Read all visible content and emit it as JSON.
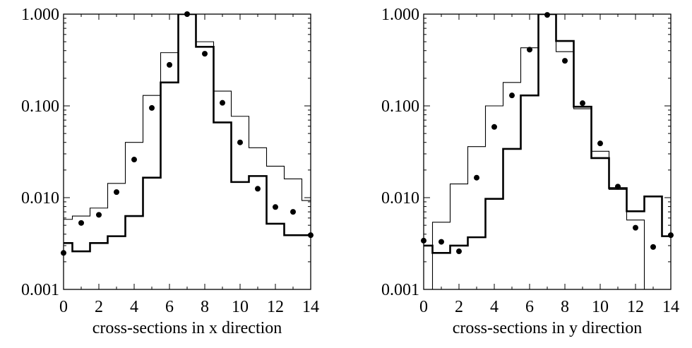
{
  "chart_data": [
    {
      "type": "line",
      "xlabel": "cross-sections in x direction",
      "ylabel": "",
      "xlim": [
        0,
        14
      ],
      "ylim": [
        0.001,
        1.0
      ],
      "yscale": "log",
      "x_ticks": [
        0,
        2,
        4,
        6,
        8,
        10,
        12,
        14
      ],
      "x_tick_labels": [
        "0",
        "2",
        "4",
        "6",
        "8",
        "10",
        "12",
        "14"
      ],
      "y_ticks": [
        0.001,
        0.01,
        0.1,
        1.0
      ],
      "y_tick_labels": [
        "0.001",
        "0.010",
        "0.100",
        "1.000"
      ],
      "grid": false,
      "series": [
        {
          "kind": "points",
          "x": [
            0,
            1,
            2,
            3,
            4,
            5,
            6,
            7,
            8,
            9,
            10,
            11,
            12,
            13,
            14
          ],
          "values": [
            0.0025,
            0.0053,
            0.0065,
            0.0115,
            0.026,
            0.095,
            0.28,
            1.0,
            0.37,
            0.108,
            0.04,
            0.0125,
            0.0079,
            0.007,
            0.0039
          ]
        },
        {
          "kind": "step-thin",
          "x": [
            0,
            1,
            2,
            3,
            4,
            5,
            6,
            7,
            8,
            9,
            10,
            11,
            12,
            13,
            14
          ],
          "values": [
            0.0058,
            0.0063,
            0.0077,
            0.0143,
            0.04,
            0.13,
            0.38,
            1.0,
            0.5,
            0.145,
            0.077,
            0.035,
            0.022,
            0.016,
            0.0093
          ]
        },
        {
          "kind": "step-thick",
          "x": [
            0,
            1,
            2,
            3,
            4,
            5,
            6,
            7,
            8,
            9,
            10,
            11,
            12,
            13,
            14
          ],
          "values": [
            0.0032,
            0.0026,
            0.0032,
            0.0038,
            0.0063,
            0.0165,
            0.18,
            1.0,
            0.44,
            0.066,
            0.0148,
            0.0172,
            0.0052,
            0.0039,
            0.0039
          ]
        }
      ]
    },
    {
      "type": "line",
      "xlabel": "cross-sections in y direction",
      "ylabel": "",
      "xlim": [
        0,
        14
      ],
      "ylim": [
        0.001,
        1.0
      ],
      "yscale": "log",
      "x_ticks": [
        0,
        2,
        4,
        6,
        8,
        10,
        12,
        14
      ],
      "x_tick_labels": [
        "0",
        "2",
        "4",
        "6",
        "8",
        "10",
        "12",
        "14"
      ],
      "y_ticks": [
        0.001,
        0.01,
        0.1,
        1.0
      ],
      "y_tick_labels": [
        "0.001",
        "0.010",
        "0.100",
        "1.000"
      ],
      "grid": false,
      "series": [
        {
          "kind": "points",
          "x": [
            0,
            1,
            2,
            3,
            4,
            5,
            6,
            7,
            8,
            9,
            10,
            11,
            12,
            13,
            14
          ],
          "values": [
            0.0034,
            0.0033,
            0.0026,
            0.0165,
            0.059,
            0.13,
            0.41,
            0.98,
            0.31,
            0.107,
            0.039,
            0.0132,
            0.0047,
            0.0029,
            0.0039
          ]
        },
        {
          "kind": "step-thin",
          "x": [
            0,
            1,
            2,
            3,
            4,
            5,
            6,
            7,
            8,
            9,
            10,
            11,
            12,
            13,
            14
          ],
          "values": [
            0.001,
            0.0054,
            0.0141,
            0.036,
            0.1,
            0.18,
            0.43,
            1.0,
            0.39,
            0.093,
            0.032,
            0.0123,
            0.0057,
            0.001,
            0.001
          ]
        },
        {
          "kind": "step-thick",
          "x": [
            0,
            1,
            2,
            3,
            4,
            5,
            6,
            7,
            8,
            9,
            10,
            11,
            12,
            13,
            14
          ],
          "values": [
            0.003,
            0.0025,
            0.003,
            0.0037,
            0.0097,
            0.034,
            0.13,
            1.0,
            0.51,
            0.098,
            0.027,
            0.0127,
            0.0071,
            0.0103,
            0.0038
          ]
        }
      ]
    }
  ]
}
